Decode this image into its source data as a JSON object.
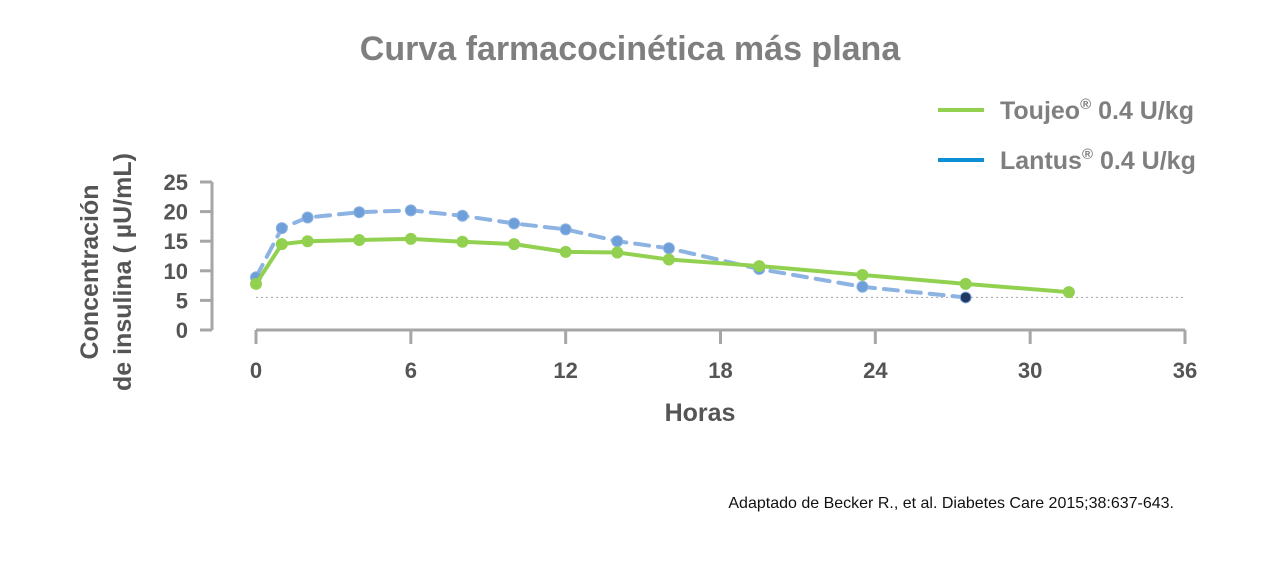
{
  "chart_data": {
    "type": "line",
    "title": "Curva farmacocinética más plana",
    "xlabel": "Horas",
    "ylabel_line1": "Concentración",
    "ylabel_line2": "de insulina ( µU/mL)",
    "xlim": [
      0,
      36
    ],
    "ylim": [
      0,
      25
    ],
    "xticks": [
      0,
      6,
      12,
      18,
      24,
      30,
      36
    ],
    "yticks": [
      0,
      5,
      10,
      15,
      20,
      25
    ],
    "reference_line_y": 5.5,
    "legend_position": "top-right",
    "series": [
      {
        "name": "Toujeo",
        "sup": "®",
        "dose": "0.4 U/kg",
        "color": "#92d050",
        "legend_color": "#92d050",
        "style": "solid",
        "x": [
          0,
          1,
          2,
          4,
          6,
          8,
          10,
          12,
          14,
          16,
          19.5,
          23.5,
          27.5,
          31.5
        ],
        "y": [
          7.8,
          14.5,
          15.0,
          15.2,
          15.4,
          14.9,
          14.5,
          13.2,
          13.1,
          11.9,
          10.8,
          9.3,
          7.8,
          6.4
        ]
      },
      {
        "name": "Lantus",
        "sup": "®",
        "dose": "0.4 U/kg",
        "color": "#8db3e2",
        "legend_color": "#0e8ed4",
        "style": "dashed",
        "x": [
          0,
          1,
          2,
          4,
          6,
          8,
          10,
          12,
          14,
          16,
          19.5,
          23.5,
          27.5
        ],
        "y": [
          8.9,
          17.2,
          19.0,
          19.9,
          20.2,
          19.3,
          18.0,
          17.0,
          15.0,
          13.8,
          10.3,
          7.3,
          5.5
        ]
      }
    ]
  },
  "source_note": "Adaptado  de Becker R., et al. Diabetes Care 2015;38:637-643."
}
